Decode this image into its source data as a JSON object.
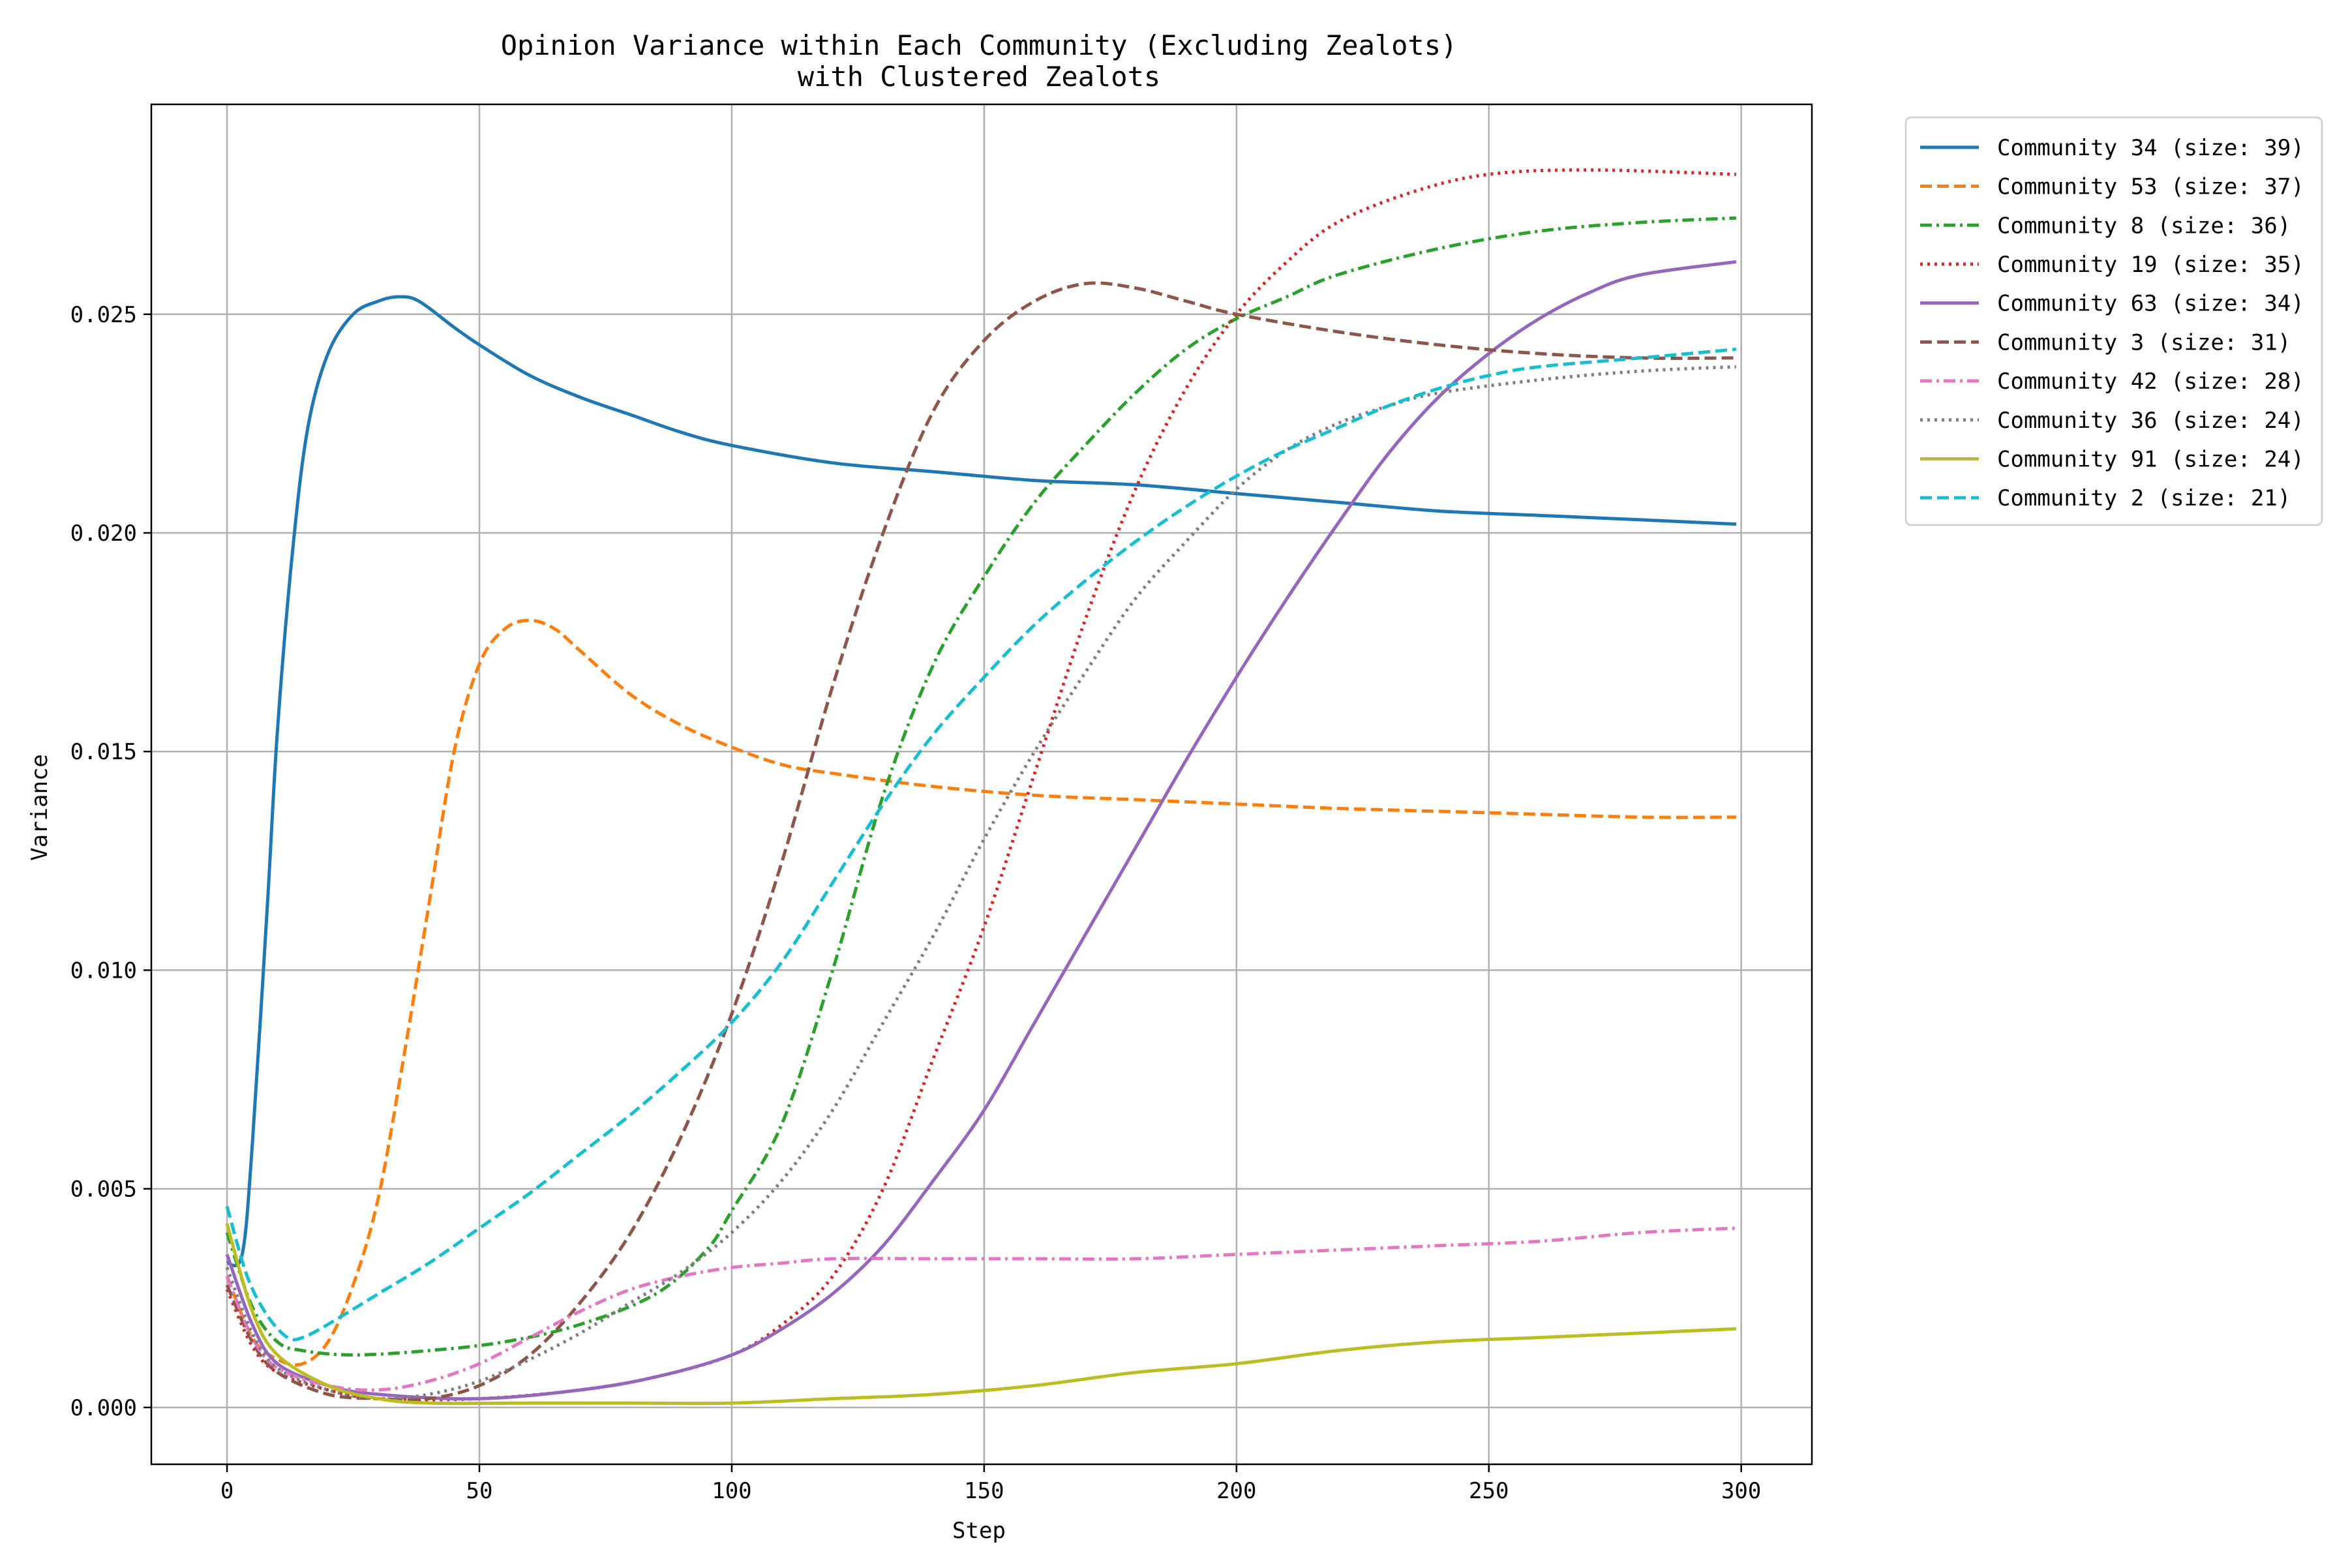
{
  "chart_data": {
    "type": "line",
    "title": [
      "Opinion Variance within Each Community (Excluding Zealots)",
      "with Clustered Zealots"
    ],
    "xlabel": "Step",
    "ylabel": "Variance",
    "xlim": [
      -15,
      314
    ],
    "ylim": [
      -0.0013,
      0.0298
    ],
    "xticks": [
      0,
      50,
      100,
      150,
      200,
      250,
      300
    ],
    "yticks": [
      0.0,
      0.005,
      0.01,
      0.015,
      0.02,
      0.025
    ],
    "xtick_labels": [
      "0",
      "50",
      "100",
      "150",
      "200",
      "250",
      "300"
    ],
    "ytick_labels": [
      "0.000",
      "0.005",
      "0.010",
      "0.015",
      "0.020",
      "0.025"
    ],
    "grid": true,
    "legend_position": "outside-top-right",
    "series": [
      {
        "name": "Community 34 (size: 39)",
        "color": "#1f77b4",
        "dash": "solid",
        "points": [
          [
            0,
            0.0033
          ],
          [
            3,
            0.0035
          ],
          [
            5,
            0.006
          ],
          [
            8,
            0.0115
          ],
          [
            10,
            0.0155
          ],
          [
            13,
            0.0196
          ],
          [
            16,
            0.0224
          ],
          [
            20,
            0.0241
          ],
          [
            25,
            0.025
          ],
          [
            30,
            0.0253
          ],
          [
            34,
            0.0254
          ],
          [
            38,
            0.0253
          ],
          [
            45,
            0.0247
          ],
          [
            50,
            0.0243
          ],
          [
            60,
            0.0236
          ],
          [
            70,
            0.0231
          ],
          [
            80,
            0.0227
          ],
          [
            90,
            0.0223
          ],
          [
            100,
            0.022
          ],
          [
            120,
            0.0216
          ],
          [
            140,
            0.0214
          ],
          [
            160,
            0.0212
          ],
          [
            180,
            0.0211
          ],
          [
            200,
            0.0209
          ],
          [
            220,
            0.0207
          ],
          [
            240,
            0.0205
          ],
          [
            260,
            0.0204
          ],
          [
            280,
            0.0203
          ],
          [
            299,
            0.0202
          ]
        ]
      },
      {
        "name": "Community 53 (size: 37)",
        "color": "#ff7f0e",
        "dash": "dashed",
        "points": [
          [
            0,
            0.003
          ],
          [
            5,
            0.0016
          ],
          [
            10,
            0.0011
          ],
          [
            15,
            0.001
          ],
          [
            20,
            0.0015
          ],
          [
            25,
            0.0028
          ],
          [
            30,
            0.0048
          ],
          [
            35,
            0.008
          ],
          [
            40,
            0.0115
          ],
          [
            45,
            0.015
          ],
          [
            50,
            0.017
          ],
          [
            55,
            0.0178
          ],
          [
            60,
            0.018
          ],
          [
            65,
            0.0178
          ],
          [
            70,
            0.0173
          ],
          [
            80,
            0.0163
          ],
          [
            90,
            0.0156
          ],
          [
            100,
            0.0151
          ],
          [
            110,
            0.0147
          ],
          [
            120,
            0.0145
          ],
          [
            140,
            0.0142
          ],
          [
            160,
            0.014
          ],
          [
            180,
            0.0139
          ],
          [
            200,
            0.0138
          ],
          [
            220,
            0.0137
          ],
          [
            250,
            0.0136
          ],
          [
            280,
            0.0135
          ],
          [
            299,
            0.0135
          ]
        ]
      },
      {
        "name": "Community 8 (size: 36)",
        "color": "#2ca02c",
        "dash": "dashdot",
        "points": [
          [
            0,
            0.004
          ],
          [
            5,
            0.0023
          ],
          [
            10,
            0.0015
          ],
          [
            15,
            0.0013
          ],
          [
            25,
            0.0012
          ],
          [
            40,
            0.0013
          ],
          [
            55,
            0.0015
          ],
          [
            70,
            0.0019
          ],
          [
            85,
            0.0026
          ],
          [
            95,
            0.0036
          ],
          [
            100,
            0.0045
          ],
          [
            110,
            0.0065
          ],
          [
            120,
            0.01
          ],
          [
            130,
            0.014
          ],
          [
            140,
            0.017
          ],
          [
            150,
            0.019
          ],
          [
            160,
            0.0207
          ],
          [
            170,
            0.022
          ],
          [
            180,
            0.0232
          ],
          [
            190,
            0.0242
          ],
          [
            200,
            0.0249
          ],
          [
            210,
            0.0254
          ],
          [
            220,
            0.0259
          ],
          [
            240,
            0.0265
          ],
          [
            260,
            0.0269
          ],
          [
            280,
            0.0271
          ],
          [
            299,
            0.0272
          ]
        ]
      },
      {
        "name": "Community 19 (size: 35)",
        "color": "#d62728",
        "dash": "dotted",
        "points": [
          [
            0,
            0.0027
          ],
          [
            5,
            0.0014
          ],
          [
            10,
            0.0008
          ],
          [
            20,
            0.0004
          ],
          [
            30,
            0.0002
          ],
          [
            50,
            0.0002
          ],
          [
            70,
            0.0004
          ],
          [
            85,
            0.0007
          ],
          [
            100,
            0.0012
          ],
          [
            110,
            0.0019
          ],
          [
            120,
            0.003
          ],
          [
            130,
            0.005
          ],
          [
            140,
            0.008
          ],
          [
            150,
            0.011
          ],
          [
            160,
            0.0145
          ],
          [
            170,
            0.018
          ],
          [
            180,
            0.021
          ],
          [
            190,
            0.0233
          ],
          [
            200,
            0.025
          ],
          [
            210,
            0.0262
          ],
          [
            220,
            0.0271
          ],
          [
            235,
            0.0278
          ],
          [
            250,
            0.0282
          ],
          [
            270,
            0.0283
          ],
          [
            299,
            0.0282
          ]
        ]
      },
      {
        "name": "Community 63 (size: 34)",
        "color": "#9467bd",
        "dash": "solid",
        "points": [
          [
            0,
            0.0035
          ],
          [
            5,
            0.0019
          ],
          [
            10,
            0.001
          ],
          [
            20,
            0.0005
          ],
          [
            30,
            0.0003
          ],
          [
            50,
            0.0002
          ],
          [
            70,
            0.0004
          ],
          [
            85,
            0.0007
          ],
          [
            100,
            0.0012
          ],
          [
            110,
            0.0018
          ],
          [
            120,
            0.0026
          ],
          [
            130,
            0.0037
          ],
          [
            140,
            0.0052
          ],
          [
            150,
            0.0068
          ],
          [
            160,
            0.0088
          ],
          [
            170,
            0.0108
          ],
          [
            180,
            0.0128
          ],
          [
            190,
            0.0148
          ],
          [
            200,
            0.0167
          ],
          [
            210,
            0.0185
          ],
          [
            220,
            0.0202
          ],
          [
            230,
            0.0218
          ],
          [
            240,
            0.0231
          ],
          [
            250,
            0.0241
          ],
          [
            260,
            0.0249
          ],
          [
            270,
            0.0255
          ],
          [
            280,
            0.0259
          ],
          [
            299,
            0.0262
          ]
        ]
      },
      {
        "name": "Community 3 (size: 31)",
        "color": "#8c564b",
        "dash": "dashed",
        "points": [
          [
            0,
            0.0028
          ],
          [
            5,
            0.0015
          ],
          [
            10,
            0.0008
          ],
          [
            20,
            0.0003
          ],
          [
            30,
            0.0002
          ],
          [
            40,
            0.0002
          ],
          [
            50,
            0.0005
          ],
          [
            60,
            0.0012
          ],
          [
            70,
            0.0024
          ],
          [
            80,
            0.004
          ],
          [
            90,
            0.0062
          ],
          [
            100,
            0.009
          ],
          [
            110,
            0.0125
          ],
          [
            120,
            0.0165
          ],
          [
            130,
            0.02
          ],
          [
            140,
            0.0228
          ],
          [
            150,
            0.0244
          ],
          [
            160,
            0.0253
          ],
          [
            170,
            0.0257
          ],
          [
            180,
            0.0256
          ],
          [
            190,
            0.0253
          ],
          [
            200,
            0.025
          ],
          [
            220,
            0.0246
          ],
          [
            240,
            0.0243
          ],
          [
            260,
            0.0241
          ],
          [
            280,
            0.024
          ],
          [
            299,
            0.024
          ]
        ]
      },
      {
        "name": "Community 42 (size: 28)",
        "color": "#e377c2",
        "dash": "dashdot",
        "points": [
          [
            0,
            0.003
          ],
          [
            5,
            0.0016
          ],
          [
            10,
            0.0009
          ],
          [
            20,
            0.0005
          ],
          [
            30,
            0.0004
          ],
          [
            40,
            0.0006
          ],
          [
            50,
            0.001
          ],
          [
            60,
            0.0016
          ],
          [
            70,
            0.0022
          ],
          [
            80,
            0.0027
          ],
          [
            90,
            0.003
          ],
          [
            100,
            0.0032
          ],
          [
            110,
            0.0033
          ],
          [
            120,
            0.0034
          ],
          [
            140,
            0.0034
          ],
          [
            160,
            0.0034
          ],
          [
            180,
            0.0034
          ],
          [
            200,
            0.0035
          ],
          [
            220,
            0.0036
          ],
          [
            240,
            0.0037
          ],
          [
            260,
            0.0038
          ],
          [
            280,
            0.004
          ],
          [
            299,
            0.0041
          ]
        ]
      },
      {
        "name": "Community 36 (size: 24)",
        "color": "#7f7f7f",
        "dash": "dotted",
        "points": [
          [
            0,
            0.0032
          ],
          [
            5,
            0.0017
          ],
          [
            10,
            0.0009
          ],
          [
            20,
            0.0004
          ],
          [
            30,
            0.0002
          ],
          [
            40,
            0.0003
          ],
          [
            50,
            0.0006
          ],
          [
            60,
            0.0011
          ],
          [
            70,
            0.0017
          ],
          [
            80,
            0.0024
          ],
          [
            90,
            0.0031
          ],
          [
            100,
            0.004
          ],
          [
            110,
            0.0052
          ],
          [
            120,
            0.0068
          ],
          [
            130,
            0.0088
          ],
          [
            140,
            0.0108
          ],
          [
            150,
            0.013
          ],
          [
            160,
            0.015
          ],
          [
            170,
            0.0168
          ],
          [
            180,
            0.0185
          ],
          [
            190,
            0.0198
          ],
          [
            200,
            0.021
          ],
          [
            210,
            0.0219
          ],
          [
            220,
            0.0225
          ],
          [
            230,
            0.0229
          ],
          [
            240,
            0.0232
          ],
          [
            260,
            0.0235
          ],
          [
            280,
            0.0237
          ],
          [
            299,
            0.0238
          ]
        ]
      },
      {
        "name": "Community 91 (size: 24)",
        "color": "#bcbd22",
        "dash": "solid",
        "points": [
          [
            0,
            0.0042
          ],
          [
            5,
            0.0022
          ],
          [
            10,
            0.0012
          ],
          [
            20,
            0.0005
          ],
          [
            30,
            0.0002
          ],
          [
            40,
            0.0001
          ],
          [
            60,
            0.0001
          ],
          [
            80,
            0.0001
          ],
          [
            100,
            0.0001
          ],
          [
            120,
            0.0002
          ],
          [
            140,
            0.0003
          ],
          [
            160,
            0.0005
          ],
          [
            180,
            0.0008
          ],
          [
            200,
            0.001
          ],
          [
            220,
            0.0013
          ],
          [
            240,
            0.0015
          ],
          [
            260,
            0.0016
          ],
          [
            280,
            0.0017
          ],
          [
            299,
            0.0018
          ]
        ]
      },
      {
        "name": "Community 2 (size: 21)",
        "color": "#17becf",
        "dash": "dashed",
        "points": [
          [
            0,
            0.0046
          ],
          [
            4,
            0.003
          ],
          [
            8,
            0.0021
          ],
          [
            12,
            0.0016
          ],
          [
            15,
            0.0016
          ],
          [
            20,
            0.0019
          ],
          [
            30,
            0.0026
          ],
          [
            40,
            0.0033
          ],
          [
            50,
            0.0041
          ],
          [
            60,
            0.0049
          ],
          [
            70,
            0.0058
          ],
          [
            80,
            0.0067
          ],
          [
            90,
            0.0077
          ],
          [
            100,
            0.0088
          ],
          [
            110,
            0.0102
          ],
          [
            120,
            0.012
          ],
          [
            130,
            0.0138
          ],
          [
            140,
            0.0154
          ],
          [
            150,
            0.0167
          ],
          [
            160,
            0.0179
          ],
          [
            170,
            0.0189
          ],
          [
            180,
            0.0198
          ],
          [
            190,
            0.0206
          ],
          [
            200,
            0.0213
          ],
          [
            210,
            0.0219
          ],
          [
            220,
            0.0224
          ],
          [
            230,
            0.0229
          ],
          [
            240,
            0.0233
          ],
          [
            250,
            0.0236
          ],
          [
            260,
            0.0238
          ],
          [
            280,
            0.024
          ],
          [
            299,
            0.0242
          ]
        ]
      }
    ]
  }
}
